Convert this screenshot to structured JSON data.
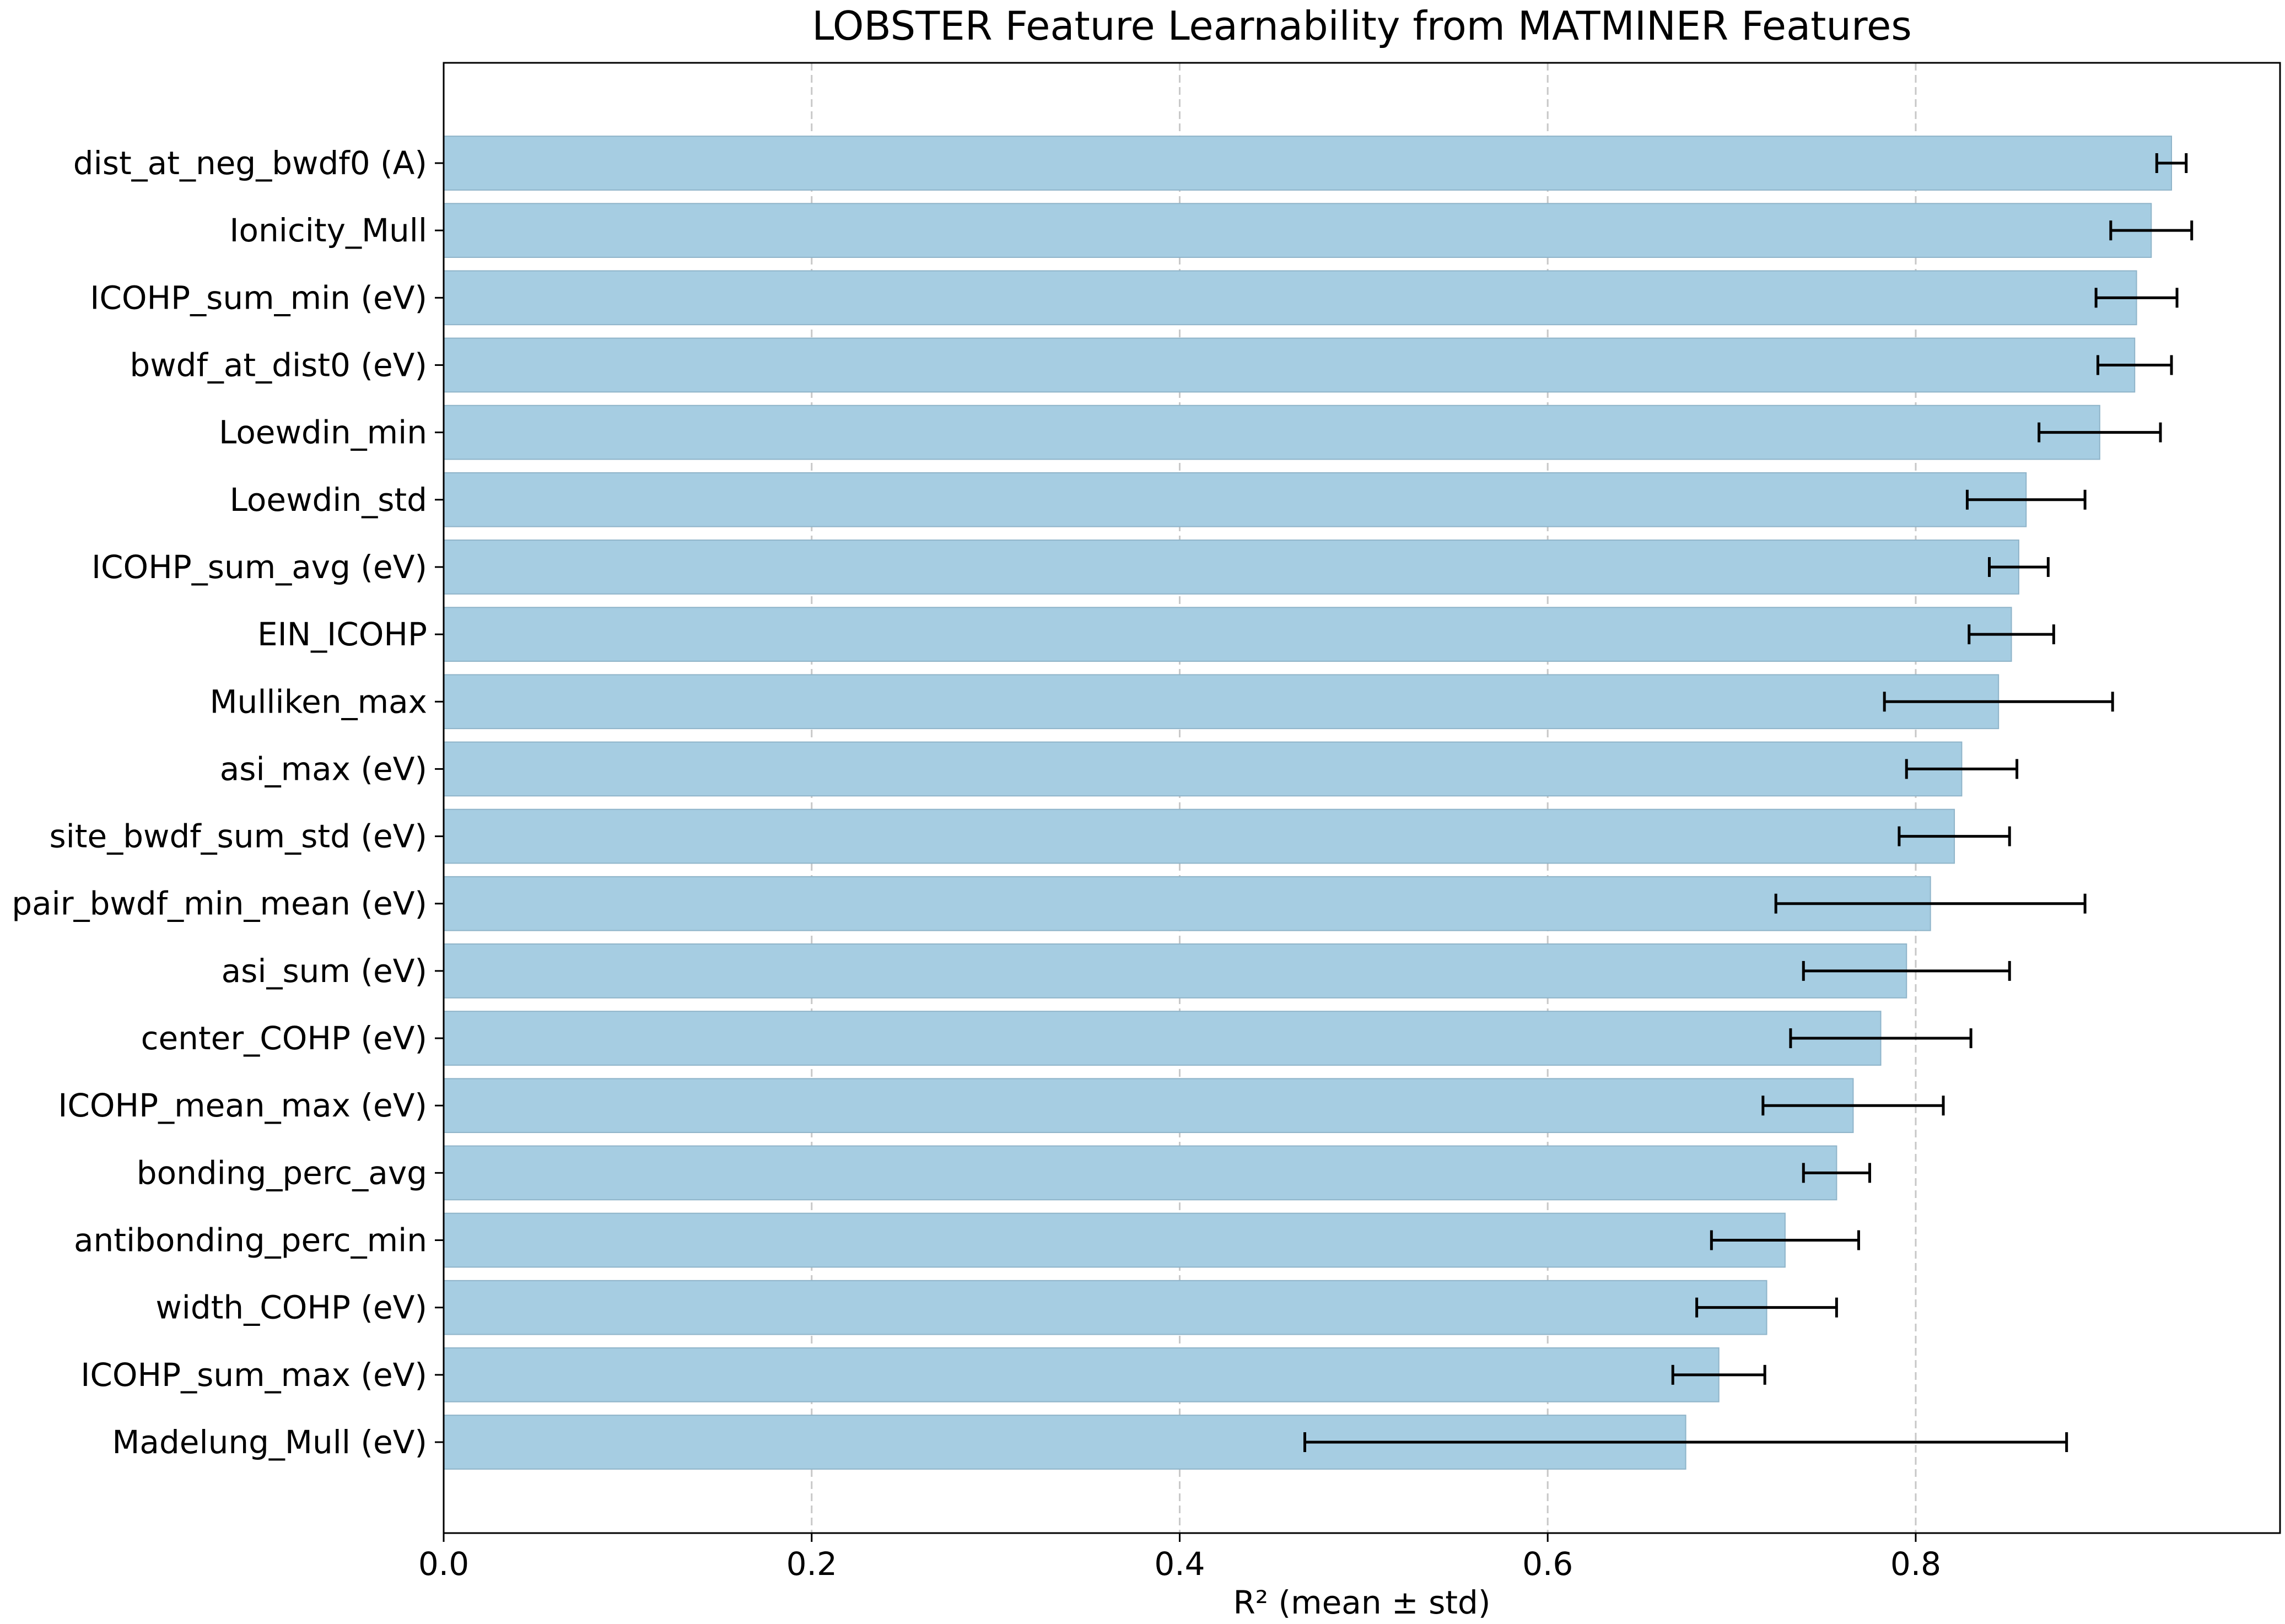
{
  "chart_data": {
    "type": "bar",
    "orientation": "horizontal",
    "title": "LOBSTER Feature Learnability from MATMINER Features",
    "xlabel": "R² (mean ± std)",
    "ylabel": "",
    "xlim": [
      0.0,
      0.998
    ],
    "xticks": [
      0.0,
      0.2,
      0.4,
      0.6,
      0.8
    ],
    "xtick_labels": [
      "0.0",
      "0.2",
      "0.4",
      "0.6",
      "0.8"
    ],
    "grid": "x-dashed",
    "legend": "none",
    "bar_color": "#a6cde2",
    "bar_edge_color": "#8fb4c9",
    "error_bar_color": "#000000",
    "grid_color": "#c8c8c8",
    "categories": [
      "dist_at_neg_bwdf0 (A)",
      "Ionicity_Mull",
      "ICOHP_sum_min (eV)",
      "bwdf_at_dist0 (eV)",
      "Loewdin_min",
      "Loewdin_std",
      "ICOHP_sum_avg (eV)",
      "EIN_ICOHP",
      "Mulliken_max",
      "asi_max (eV)",
      "site_bwdf_sum_std (eV)",
      "pair_bwdf_min_mean (eV)",
      "asi_sum (eV)",
      "center_COHP (eV)",
      "ICOHP_mean_max (eV)",
      "bonding_perc_avg",
      "antibonding_perc_min",
      "width_COHP (eV)",
      "ICOHP_sum_max (eV)",
      "Madelung_Mull (eV)"
    ],
    "values": [
      0.939,
      0.928,
      0.92,
      0.919,
      0.9,
      0.86,
      0.856,
      0.852,
      0.845,
      0.825,
      0.821,
      0.808,
      0.795,
      0.781,
      0.766,
      0.757,
      0.729,
      0.719,
      0.693,
      0.675
    ],
    "errors": [
      0.008,
      0.022,
      0.022,
      0.02,
      0.033,
      0.032,
      0.016,
      0.023,
      0.062,
      0.03,
      0.03,
      0.084,
      0.056,
      0.049,
      0.049,
      0.018,
      0.04,
      0.038,
      0.025,
      0.207
    ]
  }
}
